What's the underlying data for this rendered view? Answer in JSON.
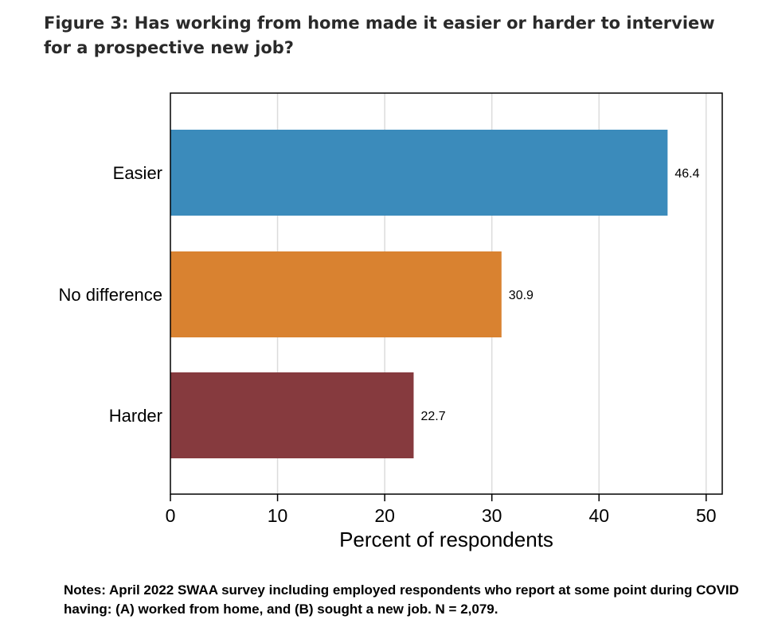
{
  "figure": {
    "title": "Figure 3: Has working from home made it easier or harder to interview for a prospective new job?",
    "notes": "Notes: April 2022 SWAA survey including employed respondents who report at some point during COVID having: (A) worked from home, and (B) sought a new job. N = 2,079."
  },
  "chart_data": {
    "type": "bar",
    "orientation": "horizontal",
    "categories": [
      "Easier",
      "No difference",
      "Harder"
    ],
    "values": [
      46.4,
      30.9,
      22.7
    ],
    "value_labels": [
      "46.4",
      "30.9",
      "22.7"
    ],
    "colors": [
      "#3b8bbb",
      "#d98230",
      "#863a3e"
    ],
    "xlabel": "Percent of respondents",
    "ylabel": "",
    "xlim": [
      0,
      51.5
    ],
    "xticks": [
      0,
      10,
      20,
      30,
      40,
      50
    ],
    "grid": true
  }
}
